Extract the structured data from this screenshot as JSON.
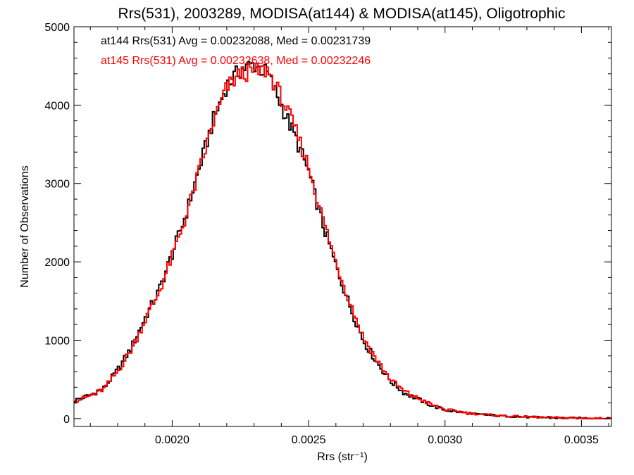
{
  "chart_data": {
    "type": "line",
    "step": true,
    "title": "Rrs(531), 2003289, MODISA(at144) & MODISA(at145), Oligotrophic",
    "xlabel": "Rrs (str⁻¹)",
    "ylabel": "Number of Observations",
    "xlim": [
      0.00164,
      0.00361
    ],
    "ylim": [
      -100,
      5000
    ],
    "xticks": [
      0.002,
      0.0025,
      0.003,
      0.0035
    ],
    "xtick_labels": [
      "0.0020",
      "0.0025",
      "0.0030",
      "0.0035"
    ],
    "yticks": [
      0,
      1000,
      2000,
      3000,
      4000,
      5000
    ],
    "ytick_labels": [
      "0",
      "1000",
      "2000",
      "3000",
      "4000",
      "5000"
    ],
    "grid": false,
    "legend": [
      {
        "text": "at144 Rrs(531) Avg = 0.00232088, Med = 0.00231739",
        "color": "#000000"
      },
      {
        "text": "at145 Rrs(531) Avg = 0.00232638, Med = 0.00232246",
        "color": "#ff0000"
      }
    ],
    "series": [
      {
        "key": "at144",
        "color": "#000000",
        "x": [
          0.00164,
          0.0017,
          0.00175,
          0.0018,
          0.00185,
          0.0019,
          0.00195,
          0.002,
          0.00205,
          0.0021,
          0.00215,
          0.0022,
          0.00225,
          0.0023,
          0.00235,
          0.0024,
          0.00245,
          0.0025,
          0.00255,
          0.0026,
          0.00265,
          0.0027,
          0.00275,
          0.0028,
          0.00285,
          0.0029,
          0.00295,
          0.003,
          0.0031,
          0.0032,
          0.0033,
          0.0034,
          0.0035,
          0.00361
        ],
        "y": [
          230,
          300,
          390,
          620,
          900,
          1280,
          1620,
          2100,
          2600,
          3200,
          3800,
          4250,
          4450,
          4520,
          4400,
          4000,
          3600,
          3150,
          2500,
          1950,
          1450,
          1000,
          720,
          480,
          330,
          250,
          170,
          110,
          60,
          35,
          20,
          10,
          5,
          0
        ]
      },
      {
        "key": "at145",
        "color": "#ff0000",
        "x": [
          0.00164,
          0.0017,
          0.00175,
          0.0018,
          0.00185,
          0.0019,
          0.00195,
          0.002,
          0.00205,
          0.0021,
          0.00215,
          0.0022,
          0.00225,
          0.0023,
          0.00235,
          0.0024,
          0.00245,
          0.0025,
          0.00255,
          0.0026,
          0.00265,
          0.0027,
          0.00275,
          0.0028,
          0.00285,
          0.0029,
          0.00295,
          0.003,
          0.0031,
          0.0032,
          0.0033,
          0.0034,
          0.0035,
          0.00361
        ],
        "y": [
          220,
          290,
          380,
          600,
          880,
          1250,
          1600,
          2070,
          2570,
          3170,
          3770,
          4220,
          4400,
          4420,
          4450,
          4100,
          3700,
          3220,
          2580,
          2000,
          1500,
          1040,
          750,
          500,
          350,
          260,
          180,
          115,
          65,
          38,
          22,
          12,
          6,
          0
        ]
      }
    ]
  }
}
